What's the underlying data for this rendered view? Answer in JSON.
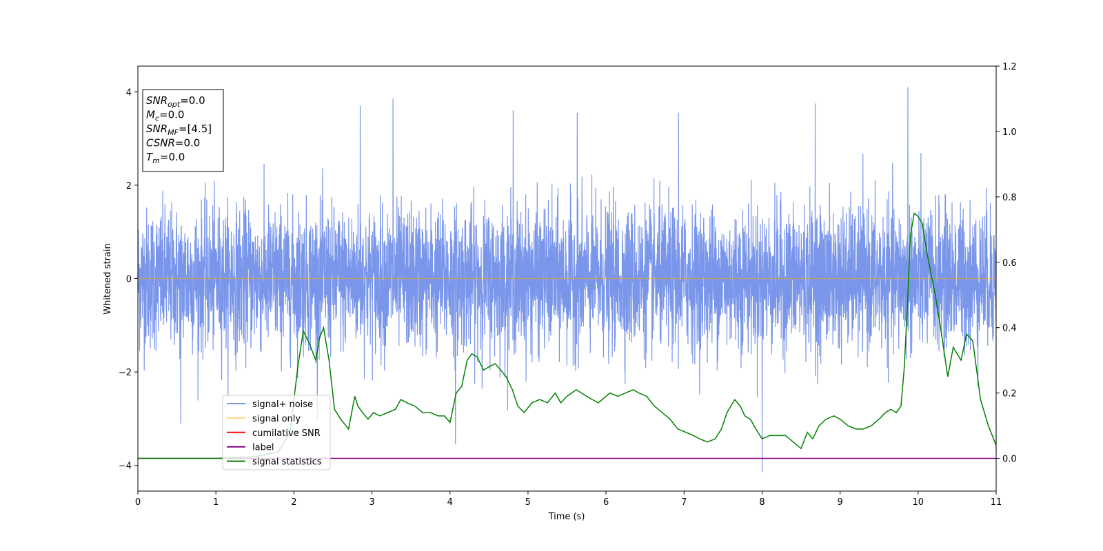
{
  "chart_data": {
    "type": "line",
    "title": "",
    "xlabel": "Time (s)",
    "ylabel": "Whitened strain",
    "xlim": [
      0,
      11
    ],
    "ylim": [
      -4.55,
      4.55
    ],
    "y2lim": [
      -0.1,
      1.2
    ],
    "x_ticks": [
      "0",
      "1",
      "2",
      "3",
      "4",
      "5",
      "6",
      "7",
      "8",
      "9",
      "10",
      "11"
    ],
    "y_ticks": [
      "−4",
      "−2",
      "0",
      "2",
      "4"
    ],
    "y2_ticks": [
      "0.0",
      "0.2",
      "0.4",
      "0.6",
      "0.8",
      "1.0",
      "1.2"
    ],
    "grid": false,
    "legend_position": "lower-left",
    "legend": [
      "signal+ noise",
      "signal only",
      "cumilative SNR",
      "label",
      "signal statistics"
    ],
    "annotation": {
      "lines": [
        {
          "symbol": "SNR",
          "sub": "opt",
          "value": "=0.0"
        },
        {
          "symbol": "M",
          "sub": "c",
          "value": "=0.0"
        },
        {
          "symbol": "SNR",
          "sub": "MF",
          "value": "=[4.5]"
        },
        {
          "symbol": "CSNR",
          "sub": "",
          "value": "=0.0"
        },
        {
          "symbol": "T",
          "sub": "m",
          "value": "=0.0"
        }
      ]
    },
    "series": [
      {
        "name": "signal+ noise",
        "color": "#4169E1",
        "axis": "left",
        "description_type": "noise",
        "x_range": [
          0,
          11
        ],
        "approx_std": 0.75,
        "notable_peaks": [
          [
            2.85,
            3.7
          ],
          [
            3.27,
            3.85
          ],
          [
            4.81,
            3.6
          ],
          [
            5.63,
            3.55
          ],
          [
            6.93,
            3.55
          ],
          [
            8.68,
            3.75
          ],
          [
            9.87,
            4.1
          ],
          [
            8.0,
            -4.15
          ],
          [
            4.07,
            -3.55
          ],
          [
            0.55,
            -3.1
          ],
          [
            11.0,
            -3.75
          ]
        ]
      },
      {
        "name": "signal only",
        "color": "#FFA500",
        "axis": "left",
        "x": [
          0,
          11
        ],
        "y": [
          0,
          0
        ]
      },
      {
        "name": "cumilative SNR",
        "color": "#FF0000",
        "axis": "right",
        "x": [],
        "y": []
      },
      {
        "name": "label",
        "color": "#800080",
        "axis": "right",
        "x": [
          0,
          11
        ],
        "y": [
          0,
          0
        ]
      },
      {
        "name": "signal statistics",
        "color": "#008000",
        "axis": "right",
        "x": [
          0.0,
          1.0,
          1.5,
          1.8,
          1.95,
          2.05,
          2.12,
          2.2,
          2.28,
          2.33,
          2.38,
          2.45,
          2.52,
          2.6,
          2.7,
          2.78,
          2.82,
          2.88,
          2.95,
          3.02,
          3.1,
          3.2,
          3.3,
          3.37,
          3.45,
          3.55,
          3.65,
          3.75,
          3.85,
          3.93,
          4.0,
          4.08,
          4.15,
          4.22,
          4.28,
          4.35,
          4.43,
          4.5,
          4.58,
          4.65,
          4.72,
          4.8,
          4.87,
          4.95,
          5.05,
          5.15,
          5.25,
          5.35,
          5.42,
          5.5,
          5.62,
          5.75,
          5.9,
          6.05,
          6.15,
          6.25,
          6.35,
          6.42,
          6.52,
          6.62,
          6.72,
          6.82,
          6.92,
          7.02,
          7.12,
          7.2,
          7.3,
          7.4,
          7.48,
          7.55,
          7.65,
          7.72,
          7.78,
          7.85,
          7.92,
          8.0,
          8.1,
          8.2,
          8.3,
          8.4,
          8.5,
          8.58,
          8.65,
          8.73,
          8.82,
          8.92,
          9.0,
          9.1,
          9.2,
          9.3,
          9.4,
          9.5,
          9.58,
          9.65,
          9.72,
          9.78,
          9.82,
          9.86,
          9.9,
          9.95,
          10.0,
          10.05,
          10.12,
          10.22,
          10.3,
          10.38,
          10.45,
          10.55,
          10.62,
          10.7,
          10.8,
          10.9,
          11.0
        ],
        "y": [
          0.0,
          0.0,
          0.005,
          0.02,
          0.08,
          0.28,
          0.39,
          0.35,
          0.3,
          0.37,
          0.4,
          0.3,
          0.15,
          0.12,
          0.09,
          0.19,
          0.16,
          0.14,
          0.12,
          0.14,
          0.13,
          0.14,
          0.15,
          0.18,
          0.17,
          0.16,
          0.14,
          0.14,
          0.13,
          0.13,
          0.11,
          0.2,
          0.22,
          0.3,
          0.32,
          0.31,
          0.27,
          0.28,
          0.29,
          0.27,
          0.25,
          0.21,
          0.16,
          0.14,
          0.17,
          0.18,
          0.17,
          0.2,
          0.17,
          0.19,
          0.21,
          0.19,
          0.17,
          0.2,
          0.19,
          0.2,
          0.21,
          0.2,
          0.19,
          0.16,
          0.14,
          0.12,
          0.09,
          0.08,
          0.07,
          0.06,
          0.05,
          0.06,
          0.09,
          0.14,
          0.18,
          0.16,
          0.13,
          0.12,
          0.09,
          0.06,
          0.07,
          0.07,
          0.07,
          0.05,
          0.03,
          0.08,
          0.06,
          0.1,
          0.12,
          0.13,
          0.12,
          0.1,
          0.09,
          0.09,
          0.1,
          0.12,
          0.14,
          0.15,
          0.14,
          0.16,
          0.27,
          0.45,
          0.68,
          0.75,
          0.74,
          0.72,
          0.62,
          0.5,
          0.38,
          0.25,
          0.34,
          0.3,
          0.38,
          0.36,
          0.18,
          0.1,
          0.04
        ]
      }
    ]
  }
}
